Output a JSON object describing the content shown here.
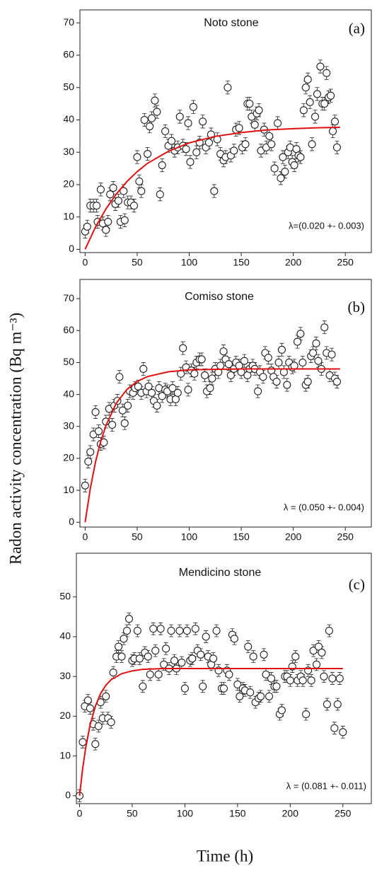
{
  "ylabel": "Radon activity concentration (Bq m⁻³)",
  "xlabel": "Time (h)",
  "chart_data": [
    {
      "type": "scatter",
      "title": "Noto stone",
      "panel_label": "(a)",
      "annotation": "λ=(0.020 +- 0.003)",
      "xlim": [
        -5,
        275
      ],
      "ylim": [
        -1,
        74
      ],
      "xticks": [
        0,
        50,
        100,
        150,
        200,
        250
      ],
      "yticks": [
        0,
        10,
        20,
        30,
        40,
        50,
        60,
        70
      ],
      "yerr": 2,
      "marker_color": "#222222",
      "points": {
        "x": [
          0,
          2,
          5,
          8,
          11,
          12,
          15,
          17,
          20,
          22,
          24,
          27,
          29,
          32,
          34,
          37,
          38,
          41,
          44,
          47,
          50,
          52,
          54,
          57,
          60,
          62,
          64,
          67,
          69,
          72,
          74,
          77,
          80,
          83,
          86,
          89,
          91,
          94,
          97,
          99,
          101,
          104,
          107,
          110,
          113,
          116,
          119,
          121,
          124,
          127,
          130,
          133,
          135,
          137,
          140,
          143,
          145,
          148,
          151,
          154,
          156,
          158,
          160,
          163,
          165,
          167,
          169,
          172,
          174,
          177,
          179,
          182,
          185,
          188,
          190,
          192,
          195,
          197,
          199,
          201,
          203,
          205,
          207,
          210,
          212,
          214,
          216,
          218,
          221,
          223,
          226,
          228,
          230,
          232,
          234,
          236,
          238,
          240,
          242
        ],
        "values": [
          5.5,
          7,
          13.5,
          13.5,
          13.5,
          8.5,
          18.5,
          8,
          6,
          8.5,
          17,
          19,
          14,
          15,
          8.5,
          18,
          9,
          14.5,
          14.5,
          13.5,
          28.5,
          21,
          18,
          40,
          29.5,
          38,
          40.5,
          46,
          42.5,
          17,
          26,
          36.5,
          32,
          33.5,
          30.5,
          31.5,
          41,
          32,
          31,
          39,
          27,
          44,
          30,
          33,
          39.5,
          31.5,
          33,
          35.5,
          18,
          34,
          29.5,
          27.5,
          28.5,
          50,
          29,
          30.5,
          37,
          37.5,
          31.5,
          32.5,
          45,
          45,
          41,
          38.5,
          42,
          43,
          30.5,
          37,
          31.5,
          35,
          32.5,
          25,
          39,
          22,
          28.5,
          24,
          30,
          31.5,
          27,
          26,
          31,
          29,
          28.5,
          43,
          50,
          52.5,
          45.5,
          32.5,
          41,
          48,
          56.5,
          45,
          45,
          54.5,
          47,
          47.5,
          36.5,
          39.5,
          31.5
        ]
      },
      "fit": {
        "color": "#e01010",
        "x": [
          0,
          10,
          20,
          30,
          40,
          50,
          60,
          80,
          100,
          125,
          150,
          175,
          200,
          225,
          245
        ],
        "values": [
          0,
          6.9,
          12.5,
          17.1,
          20.9,
          24.0,
          26.6,
          30.3,
          32.9,
          34.9,
          36.1,
          36.9,
          37.3,
          37.6,
          37.7
        ]
      }
    },
    {
      "type": "scatter",
      "title": "Comiso stone",
      "panel_label": "(b)",
      "annotation": "λ = (0.050 +- 0.004)",
      "xlim": [
        -5,
        275
      ],
      "ylim": [
        -1.5,
        76
      ],
      "xticks": [
        0,
        50,
        100,
        150,
        200,
        250
      ],
      "yticks": [
        0,
        10,
        20,
        30,
        40,
        50,
        60,
        70
      ],
      "yerr": 2,
      "marker_color": "#222222",
      "points": {
        "x": [
          0,
          3,
          5,
          8,
          10,
          13,
          15,
          18,
          20,
          23,
          26,
          28,
          31,
          33,
          36,
          38,
          41,
          43,
          46,
          48,
          51,
          54,
          56,
          59,
          61,
          64,
          66,
          69,
          71,
          74,
          77,
          79,
          82,
          84,
          87,
          89,
          92,
          94,
          97,
          99,
          102,
          105,
          107,
          110,
          112,
          115,
          117,
          120,
          122,
          125,
          128,
          130,
          133,
          135,
          138,
          140,
          143,
          145,
          148,
          150,
          153,
          156,
          158,
          161,
          163,
          166,
          168,
          171,
          173,
          176,
          179,
          181,
          184,
          186,
          189,
          191,
          194,
          196,
          199,
          201,
          204,
          207,
          209,
          212,
          214,
          217,
          219,
          222,
          224,
          227,
          230,
          232,
          235,
          237,
          240,
          242
        ],
        "values": [
          11.5,
          19,
          22,
          27.5,
          34.5,
          28.5,
          24.5,
          25,
          31.5,
          35.5,
          30.5,
          36.5,
          38,
          45.5,
          35,
          31,
          36.5,
          41,
          40.5,
          42,
          42.5,
          40.5,
          48,
          41,
          42.5,
          40.5,
          38,
          36.5,
          42,
          39.5,
          41.5,
          41,
          38.5,
          42,
          38.5,
          40.5,
          46.5,
          54.5,
          48.5,
          41.5,
          47.5,
          46.5,
          50,
          51,
          51,
          46,
          41,
          42,
          45,
          48,
          47,
          49,
          53.5,
          51,
          49.5,
          46,
          48,
          50,
          49,
          47,
          50.5,
          46,
          48,
          49,
          48,
          41,
          47,
          45.5,
          53,
          51.5,
          47.5,
          45.5,
          44,
          50,
          54,
          47,
          43,
          50,
          48.5,
          49,
          56.5,
          59,
          50,
          43,
          44,
          52,
          53,
          56,
          50.5,
          48,
          61,
          53,
          46,
          52.5,
          45,
          44
        ]
      },
      "fit": {
        "color": "#e01010",
        "x": [
          0,
          5,
          10,
          15,
          20,
          30,
          40,
          50,
          60,
          80,
          100,
          150,
          200,
          245
        ],
        "values": [
          0,
          10.6,
          18.9,
          25.3,
          30.3,
          37.3,
          41.5,
          44.1,
          45.6,
          47.1,
          47.7,
          48.0,
          48.0,
          48.0
        ]
      }
    },
    {
      "type": "scatter",
      "title": "Mendicino stone",
      "panel_label": "(c)",
      "annotation": "λ = (0.081 +- 0.011)",
      "xlim": [
        -3,
        277
      ],
      "ylim": [
        -2,
        61
      ],
      "xticks": [
        0,
        50,
        100,
        150,
        200,
        250
      ],
      "yticks": [
        0,
        10,
        20,
        30,
        40,
        50
      ],
      "yerr": 1.5,
      "marker_color": "#222222",
      "points": {
        "x": [
          0,
          3,
          5,
          8,
          10,
          13,
          15,
          18,
          20,
          22,
          25,
          27,
          30,
          32,
          35,
          37,
          40,
          42,
          45,
          47,
          50,
          52,
          55,
          57,
          60,
          62,
          65,
          67,
          70,
          72,
          75,
          77,
          80,
          82,
          85,
          87,
          90,
          92,
          95,
          97,
          100,
          102,
          105,
          107,
          110,
          112,
          115,
          117,
          120,
          122,
          125,
          127,
          130,
          132,
          135,
          137,
          140,
          142,
          145,
          147,
          150,
          152,
          155,
          157,
          160,
          162,
          165,
          167,
          170,
          172,
          175,
          177,
          180,
          182,
          185,
          187,
          190,
          192,
          195,
          197,
          200,
          202,
          205,
          207,
          210,
          212,
          215,
          217,
          220,
          222,
          225,
          227,
          230,
          232,
          235,
          237,
          240,
          242,
          245,
          247,
          250
        ],
        "values": [
          0,
          13.5,
          22.5,
          24,
          22,
          18,
          13,
          17.5,
          23.5,
          19.5,
          25,
          19.5,
          18.5,
          31,
          35,
          37.5,
          35,
          39.5,
          41.5,
          44.5,
          34,
          34.5,
          41.5,
          34.5,
          27.5,
          36,
          35,
          30.5,
          42,
          36.5,
          30.5,
          42,
          33,
          37,
          32,
          41.5,
          34,
          32,
          41.5,
          33.5,
          27,
          41.5,
          34,
          34.5,
          42,
          36.5,
          35.5,
          27.5,
          40,
          35,
          33,
          34.5,
          41.5,
          31.5,
          27,
          27,
          31.5,
          30.5,
          40.5,
          39.5,
          28,
          25,
          27,
          26.5,
          37.5,
          26,
          35,
          23.5,
          24.5,
          25,
          35.5,
          30.5,
          25,
          29.5,
          27.5,
          27.5,
          20.5,
          21.5,
          30,
          30,
          29,
          32.5,
          35,
          29,
          30,
          29,
          20.5,
          31.5,
          29,
          36.5,
          33,
          37.5,
          36,
          30,
          23,
          41.5,
          29.5,
          17,
          23,
          29.5,
          16
        ]
      },
      "fit": {
        "color": "#e01010",
        "x": [
          0,
          3,
          6,
          10,
          15,
          20,
          25,
          30,
          40,
          50,
          60,
          80,
          100,
          150,
          200,
          250
        ],
        "values": [
          0,
          6.9,
          12.3,
          17.8,
          22.5,
          25.7,
          27.8,
          29.2,
          30.7,
          31.4,
          31.8,
          32.0,
          32.0,
          32.0,
          32.0,
          32.0
        ]
      }
    }
  ]
}
